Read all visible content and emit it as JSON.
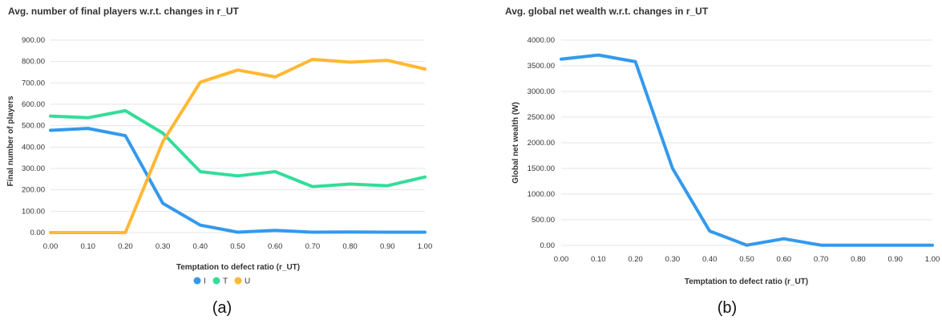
{
  "chart_data": [
    {
      "type": "line",
      "title": "Avg. number of final players w.r.t. changes in r_UT",
      "xlabel": "Temptation to defect ratio (r_UT)",
      "ylabel": "Final number of players",
      "caption": "(a)",
      "x": [
        "0.00",
        "0.10",
        "0.20",
        "0.30",
        "0.40",
        "0.50",
        "0.60",
        "0.70",
        "0.80",
        "0.90",
        "1.00"
      ],
      "xlim": [
        0,
        1
      ],
      "ylim": [
        0,
        900
      ],
      "yticks": [
        "0.00",
        "100.00",
        "200.00",
        "300.00",
        "400.00",
        "500.00",
        "600.00",
        "700.00",
        "800.00",
        "900.00"
      ],
      "grid": true,
      "legend_position": "bottom",
      "series": [
        {
          "name": "I",
          "color": "#3399ee",
          "values": [
            478,
            487,
            453,
            137,
            35,
            2,
            10,
            2,
            3,
            2,
            2
          ]
        },
        {
          "name": "T",
          "color": "#33dd99",
          "values": [
            545,
            537,
            570,
            465,
            285,
            265,
            285,
            215,
            227,
            219,
            260
          ]
        },
        {
          "name": "U",
          "color": "#ffb833",
          "values": [
            0,
            0,
            0,
            425,
            703,
            760,
            728,
            810,
            797,
            805,
            765
          ]
        }
      ]
    },
    {
      "type": "line",
      "title": "Avg. global net wealth w.r.t. changes in r_UT",
      "xlabel": "Temptation to defect ratio (r_UT)",
      "ylabel": "Global net wealth (W)",
      "caption": "(b)",
      "x": [
        "0.00",
        "0.10",
        "0.20",
        "0.30",
        "0.40",
        "0.50",
        "0.60",
        "0.70",
        "0.80",
        "0.90",
        "1.00"
      ],
      "xlim": [
        0,
        1
      ],
      "ylim": [
        0,
        4000
      ],
      "yticks": [
        "0.00",
        "500.00",
        "1000.00",
        "1500.00",
        "2000.00",
        "2500.00",
        "3000.00",
        "3500.00",
        "4000.00"
      ],
      "grid": true,
      "series": [
        {
          "color": "#3399ee",
          "values": [
            3630,
            3710,
            3580,
            1500,
            280,
            5,
            130,
            5,
            5,
            5,
            5
          ]
        }
      ]
    }
  ]
}
